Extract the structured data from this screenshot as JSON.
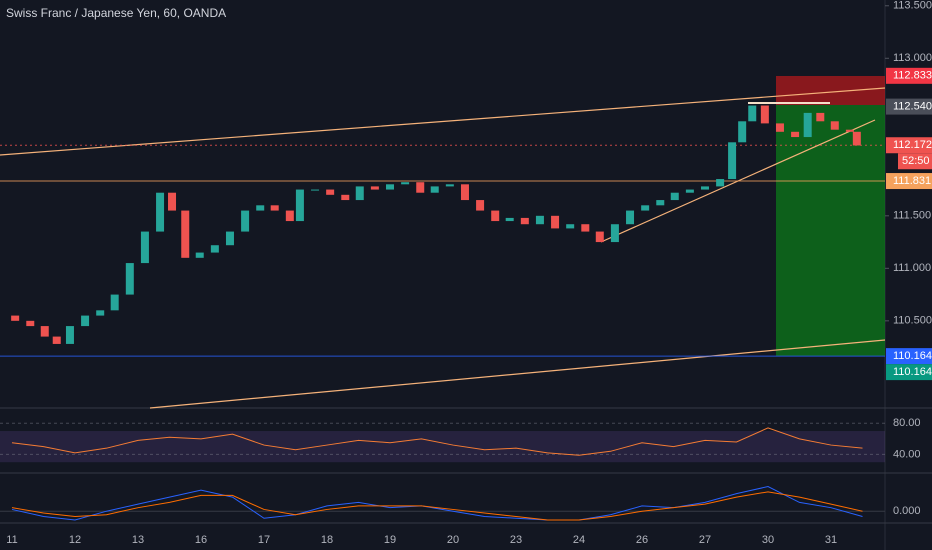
{
  "chart_data": {
    "type": "candlestick",
    "title": "Swiss Franc / Japanese Yen, 60, OANDA",
    "categories": [
      "11",
      "12",
      "13",
      "16",
      "17",
      "18",
      "19",
      "20",
      "23",
      "24",
      "26",
      "27",
      "30",
      "31"
    ],
    "x": [
      -0.19,
      0.05,
      0.29,
      0.52,
      0.71,
      0.92,
      1.16,
      1.4,
      1.63,
      1.87,
      2.11,
      2.35,
      2.54,
      2.75,
      2.98,
      3.22,
      3.46,
      3.7,
      3.94,
      4.17,
      4.41,
      4.57,
      4.81,
      5.05,
      5.29,
      5.52,
      5.76,
      6.0,
      6.24,
      6.48,
      6.71,
      6.95,
      7.19,
      7.43,
      7.67,
      7.9,
      8.14,
      8.38,
      8.62,
      8.86,
      9.1,
      9.33,
      9.57,
      9.81,
      10.05,
      10.29,
      10.52,
      10.76,
      11.0,
      11.24,
      11.43,
      11.59,
      11.75,
      11.95,
      12.19,
      12.43,
      12.63,
      12.83,
      13.06,
      13.3,
      13.41
    ],
    "values": [
      110.55,
      110.5,
      110.45,
      110.35,
      110.28,
      110.45,
      110.55,
      110.6,
      110.75,
      111.05,
      111.35,
      111.72,
      111.55,
      111.1,
      111.15,
      111.22,
      111.35,
      111.55,
      111.6,
      111.55,
      111.45,
      111.75,
      111.75,
      111.7,
      111.65,
      111.78,
      111.75,
      111.8,
      111.82,
      111.72,
      111.78,
      111.8,
      111.65,
      111.55,
      111.45,
      111.48,
      111.42,
      111.5,
      111.38,
      111.42,
      111.35,
      111.25,
      111.42,
      111.55,
      111.6,
      111.65,
      111.72,
      111.75,
      111.78,
      111.85,
      112.2,
      112.4,
      112.55,
      112.38,
      112.3,
      112.25,
      112.48,
      112.4,
      112.32,
      112.3,
      112.17
    ],
    "up_color": "#26a69a",
    "down_color": "#ef5350",
    "ylim": [
      109.67,
      113.555
    ],
    "yticks": [
      {
        "value": 113.5,
        "label": "113.500"
      },
      {
        "value": 113.0,
        "label": "113.000"
      },
      {
        "value": 111.5,
        "label": "111.500"
      },
      {
        "value": 111.0,
        "label": "111.000"
      },
      {
        "value": 110.5,
        "label": "110.500"
      }
    ],
    "price_labels": [
      {
        "value": 112.833,
        "label": "112.833",
        "color": "#f23645"
      },
      {
        "value": 112.54,
        "label": "112.540",
        "color": "#4a4e59"
      },
      {
        "value": 112.172,
        "label": "112.172",
        "color": "#ef5350"
      },
      {
        "value": 111.831,
        "label": "111.831",
        "color": "#f5a25d"
      },
      {
        "value": 110.164,
        "label": "110.164",
        "color": "#2962ff"
      },
      {
        "value": 110.164,
        "label": "110.164",
        "color": "#089981"
      }
    ],
    "countdown": "52:50",
    "indicator_x": [
      0,
      0.5,
      1,
      1.5,
      2,
      2.5,
      3,
      3.5,
      4,
      4.5,
      5,
      5.5,
      6,
      6.5,
      7,
      7.5,
      8,
      8.5,
      9,
      9.5,
      10,
      10.5,
      11,
      11.5,
      12,
      12.5,
      13,
      13.5
    ],
    "rsi": {
      "color": "#f57c34",
      "values": [
        55,
        50,
        42,
        48,
        58,
        62,
        60,
        66,
        52,
        46,
        52,
        58,
        55,
        60,
        52,
        46,
        48,
        42,
        39,
        44,
        55,
        50,
        58,
        56,
        74,
        60,
        52,
        48
      ],
      "ylim": [
        20,
        97
      ],
      "band": [
        30,
        70
      ],
      "yticks": [
        {
          "value": 80,
          "label": "80.00"
        },
        {
          "value": 40,
          "label": "40.00"
        }
      ]
    },
    "macd": {
      "series": [
        {
          "color": "#2962ff",
          "values": [
            0.01,
            -0.03,
            -0.05,
            0.0,
            0.04,
            0.08,
            0.12,
            0.08,
            -0.04,
            -0.02,
            0.03,
            0.05,
            0.02,
            0.03,
            0.0,
            -0.03,
            -0.04,
            -0.05,
            -0.05,
            -0.02,
            0.03,
            0.02,
            0.05,
            0.1,
            0.14,
            0.05,
            0.02,
            -0.03
          ]
        },
        {
          "color": "#ff6d00",
          "values": [
            0.02,
            -0.01,
            -0.03,
            -0.02,
            0.02,
            0.05,
            0.09,
            0.09,
            0.01,
            -0.02,
            0.01,
            0.03,
            0.03,
            0.03,
            0.01,
            -0.01,
            -0.03,
            -0.05,
            -0.05,
            -0.03,
            0.0,
            0.02,
            0.04,
            0.08,
            0.11,
            0.08,
            0.04,
            0.0
          ]
        }
      ],
      "ylim": [
        -0.05,
        0.2
      ],
      "yticks": [
        {
          "value": 0,
          "label": "0.000"
        }
      ]
    }
  }
}
